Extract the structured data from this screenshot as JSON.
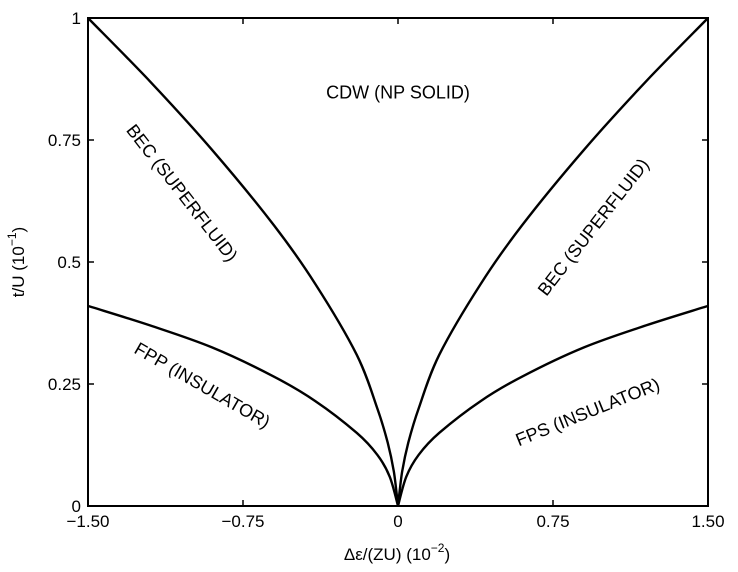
{
  "chart_data": {
    "type": "line",
    "xlabel_main": "Δε/(ZU) (10",
    "xlabel_exp": "−2",
    "xlabel_end": ")",
    "ylabel_main": "t/U (10",
    "ylabel_exp": "−1",
    "ylabel_end": ")",
    "xlim": [
      -1.5,
      1.5
    ],
    "ylim": [
      0,
      1
    ],
    "x_ticks": [
      -1.5,
      -0.75,
      0,
      0.75,
      1.5
    ],
    "x_tick_labels": [
      "−1.50",
      "−0.75",
      "0",
      "0.75",
      "1.50"
    ],
    "y_ticks": [
      0,
      0.25,
      0.5,
      0.75,
      1
    ],
    "y_tick_labels": [
      "0",
      "0.25",
      "0.5",
      "0.75",
      "1"
    ],
    "grid": false,
    "series": [
      {
        "values": [
          {
            "x": -1.5,
            "y": 1.0
          },
          {
            "x": -1.2,
            "y": 0.87
          },
          {
            "x": -0.9,
            "y": 0.73
          },
          {
            "x": -0.6,
            "y": 0.575
          },
          {
            "x": -0.4,
            "y": 0.455
          },
          {
            "x": -0.2,
            "y": 0.31
          },
          {
            "x": -0.1,
            "y": 0.2
          },
          {
            "x": -0.05,
            "y": 0.13
          },
          {
            "x": -0.02,
            "y": 0.07
          },
          {
            "x": 0,
            "y": 0
          }
        ]
      },
      {
        "values": [
          {
            "x": 0,
            "y": 0
          },
          {
            "x": 0.02,
            "y": 0.07
          },
          {
            "x": 0.05,
            "y": 0.13
          },
          {
            "x": 0.1,
            "y": 0.2
          },
          {
            "x": 0.2,
            "y": 0.31
          },
          {
            "x": 0.4,
            "y": 0.455
          },
          {
            "x": 0.6,
            "y": 0.575
          },
          {
            "x": 0.9,
            "y": 0.73
          },
          {
            "x": 1.2,
            "y": 0.87
          },
          {
            "x": 1.5,
            "y": 1.0
          }
        ]
      },
      {
        "values": [
          {
            "x": -1.5,
            "y": 0.41
          },
          {
            "x": -1.2,
            "y": 0.37
          },
          {
            "x": -0.9,
            "y": 0.325
          },
          {
            "x": -0.6,
            "y": 0.265
          },
          {
            "x": -0.4,
            "y": 0.215
          },
          {
            "x": -0.2,
            "y": 0.15
          },
          {
            "x": -0.1,
            "y": 0.105
          },
          {
            "x": -0.04,
            "y": 0.06
          },
          {
            "x": 0,
            "y": 0
          }
        ]
      },
      {
        "values": [
          {
            "x": 0,
            "y": 0
          },
          {
            "x": 0.04,
            "y": 0.06
          },
          {
            "x": 0.1,
            "y": 0.105
          },
          {
            "x": 0.2,
            "y": 0.15
          },
          {
            "x": 0.4,
            "y": 0.215
          },
          {
            "x": 0.6,
            "y": 0.265
          },
          {
            "x": 0.9,
            "y": 0.325
          },
          {
            "x": 1.2,
            "y": 0.37
          },
          {
            "x": 1.5,
            "y": 0.41
          }
        ]
      }
    ],
    "annotations": [
      {
        "text": "CDW (NP SOLID)",
        "x": 0.0,
        "y": 0.845,
        "angle": 0
      },
      {
        "text": "BEC (SUPERFLUID)",
        "x": -1.05,
        "y": 0.64,
        "angle": 52
      },
      {
        "text": "BEC (SUPERFLUID)",
        "x": 0.95,
        "y": 0.57,
        "angle": -52
      },
      {
        "text": "FPP (INSULATOR)",
        "x": -0.95,
        "y": 0.245,
        "angle": 30
      },
      {
        "text": "FPS (INSULATOR)",
        "x": 0.92,
        "y": 0.19,
        "angle": -22
      }
    ]
  }
}
